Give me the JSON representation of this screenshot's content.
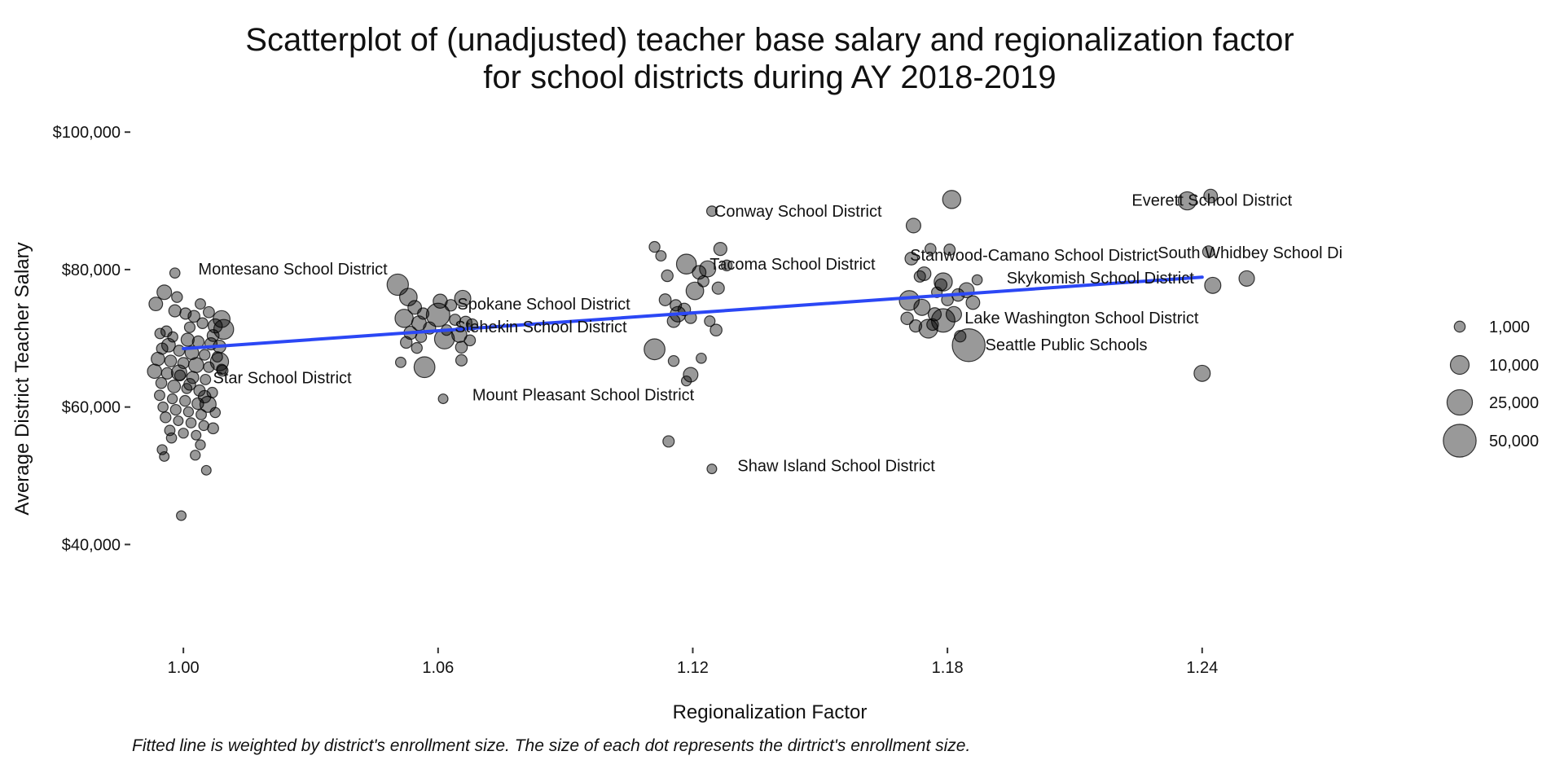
{
  "chart_data": {
    "type": "scatter",
    "title_line1": "Scatterplot of (unadjusted) teacher base salary and regionalization factor",
    "title_line2": "for school districts during AY 2018-2019",
    "xlabel": "Regionalization Factor",
    "ylabel": "Average District Teacher Salary",
    "caption": "Fitted line is weighted by district's enrollment size. The size of each dot represents the dirtrict's enrollment size.",
    "xlim": [
      0.9875,
      1.2955
    ],
    "ylim": [
      25000,
      105000
    ],
    "x_ticks": [
      1.0,
      1.06,
      1.12,
      1.18,
      1.24
    ],
    "x_tick_labels": [
      "1.00",
      "1.06",
      "1.12",
      "1.18",
      "1.24"
    ],
    "y_ticks": [
      40000,
      60000,
      80000,
      100000
    ],
    "y_tick_labels": [
      "$40,000",
      "$60,000",
      "$80,000",
      "$100,000"
    ],
    "grid": false,
    "point_color": "#000000",
    "point_opacity": 0.4,
    "line_color": "#2b47f5",
    "fit_line": {
      "x": [
        1.0,
        1.24
      ],
      "y": [
        68500,
        78900
      ]
    },
    "legend": {
      "title": "",
      "placement": "right",
      "entries": [
        {
          "label": "1,000",
          "size": 1000
        },
        {
          "label": "10,000",
          "size": 10000
        },
        {
          "label": "25,000",
          "size": 25000
        },
        {
          "label": "50,000",
          "size": 50000
        }
      ]
    },
    "labels": [
      {
        "text": "Everett School District",
        "x": 1.2423,
        "y": 90100
      },
      {
        "text": "South Whidbey School Di",
        "x": 1.2513,
        "y": 82500
      },
      {
        "text": "Conway School District",
        "x": 1.1448,
        "y": 88500
      },
      {
        "text": "Stanwood-Camano School District",
        "x": 1.2004,
        "y": 82100
      },
      {
        "text": "Tacoma School District",
        "x": 1.1435,
        "y": 80800
      },
      {
        "text": "Skykomish School District",
        "x": 1.216,
        "y": 78800
      },
      {
        "text": "Montesano School District",
        "x": 1.0258,
        "y": 80100
      },
      {
        "text": "Spokane School District",
        "x": 1.0849,
        "y": 75000
      },
      {
        "text": "Stehekin School District",
        "x": 1.0842,
        "y": 71700
      },
      {
        "text": "Lake Washington School District",
        "x": 1.2116,
        "y": 73000
      },
      {
        "text": "Seattle Public Schools",
        "x": 1.208,
        "y": 69100
      },
      {
        "text": "Star School District",
        "x": 1.0233,
        "y": 64300
      },
      {
        "text": "Mount Pleasant School District",
        "x": 1.0942,
        "y": 61800
      },
      {
        "text": "Shaw Island School District",
        "x": 1.1538,
        "y": 51500
      }
    ],
    "points": [
      {
        "x": 0.9955,
        "y": 76700,
        "size": 4000
      },
      {
        "x": 0.9935,
        "y": 75000,
        "size": 3000
      },
      {
        "x": 0.998,
        "y": 74000,
        "size": 1800
      },
      {
        "x": 1.0005,
        "y": 73600,
        "size": 1200
      },
      {
        "x": 1.0025,
        "y": 73200,
        "size": 1500
      },
      {
        "x": 1.006,
        "y": 73800,
        "size": 1100
      },
      {
        "x": 1.009,
        "y": 72800,
        "size": 7000
      },
      {
        "x": 1.0095,
        "y": 71300,
        "size": 12000
      },
      {
        "x": 1.0075,
        "y": 71800,
        "size": 3500
      },
      {
        "x": 1.0045,
        "y": 72200,
        "size": 900
      },
      {
        "x": 1.0015,
        "y": 71600,
        "size": 800
      },
      {
        "x": 0.996,
        "y": 71000,
        "size": 1000
      },
      {
        "x": 0.9945,
        "y": 70700,
        "size": 700
      },
      {
        "x": 0.9975,
        "y": 70200,
        "size": 600
      },
      {
        "x": 1.001,
        "y": 69800,
        "size": 2500
      },
      {
        "x": 1.0035,
        "y": 69500,
        "size": 1400
      },
      {
        "x": 1.0065,
        "y": 69200,
        "size": 1800
      },
      {
        "x": 1.0085,
        "y": 68800,
        "size": 2200
      },
      {
        "x": 0.995,
        "y": 68500,
        "size": 1200
      },
      {
        "x": 0.999,
        "y": 68200,
        "size": 1000
      },
      {
        "x": 1.002,
        "y": 67900,
        "size": 3000
      },
      {
        "x": 1.005,
        "y": 67600,
        "size": 900
      },
      {
        "x": 1.008,
        "y": 67300,
        "size": 700
      },
      {
        "x": 0.994,
        "y": 67000,
        "size": 2800
      },
      {
        "x": 0.997,
        "y": 66700,
        "size": 1500
      },
      {
        "x": 1.0,
        "y": 66400,
        "size": 1100
      },
      {
        "x": 1.003,
        "y": 66100,
        "size": 4500
      },
      {
        "x": 1.006,
        "y": 65800,
        "size": 800
      },
      {
        "x": 1.009,
        "y": 65500,
        "size": 600
      },
      {
        "x": 0.9932,
        "y": 65200,
        "size": 3600
      },
      {
        "x": 0.9962,
        "y": 64900,
        "size": 1300
      },
      {
        "x": 0.9992,
        "y": 64600,
        "size": 900
      },
      {
        "x": 1.0022,
        "y": 64300,
        "size": 1700
      },
      {
        "x": 1.0052,
        "y": 64000,
        "size": 700
      },
      {
        "x": 0.9948,
        "y": 63500,
        "size": 1000
      },
      {
        "x": 0.9978,
        "y": 63000,
        "size": 2200
      },
      {
        "x": 1.0008,
        "y": 62700,
        "size": 600
      },
      {
        "x": 1.0038,
        "y": 62400,
        "size": 1200
      },
      {
        "x": 1.0068,
        "y": 62100,
        "size": 800
      },
      {
        "x": 0.9944,
        "y": 61700,
        "size": 700
      },
      {
        "x": 0.9974,
        "y": 61200,
        "size": 500
      },
      {
        "x": 1.0004,
        "y": 60900,
        "size": 900
      },
      {
        "x": 1.0034,
        "y": 60500,
        "size": 1400
      },
      {
        "x": 1.0058,
        "y": 60400,
        "size": 6000
      },
      {
        "x": 0.9952,
        "y": 60000,
        "size": 600
      },
      {
        "x": 0.9982,
        "y": 59600,
        "size": 800
      },
      {
        "x": 1.0012,
        "y": 59300,
        "size": 500
      },
      {
        "x": 1.0042,
        "y": 58900,
        "size": 700
      },
      {
        "x": 1.0075,
        "y": 59200,
        "size": 600
      },
      {
        "x": 0.9958,
        "y": 58500,
        "size": 900
      },
      {
        "x": 0.9988,
        "y": 58000,
        "size": 400
      },
      {
        "x": 1.0018,
        "y": 57700,
        "size": 600
      },
      {
        "x": 1.0048,
        "y": 57300,
        "size": 500
      },
      {
        "x": 1.007,
        "y": 56900,
        "size": 1000
      },
      {
        "x": 0.9968,
        "y": 56600,
        "size": 700
      },
      {
        "x": 1.0,
        "y": 56200,
        "size": 500
      },
      {
        "x": 1.003,
        "y": 55900,
        "size": 400
      },
      {
        "x": 0.9972,
        "y": 55500,
        "size": 600
      },
      {
        "x": 1.004,
        "y": 54500,
        "size": 500
      },
      {
        "x": 0.995,
        "y": 53800,
        "size": 500
      },
      {
        "x": 1.0028,
        "y": 53000,
        "size": 500
      },
      {
        "x": 0.9955,
        "y": 52800,
        "size": 400
      },
      {
        "x": 1.0054,
        "y": 50800,
        "size": 400
      },
      {
        "x": 0.9995,
        "y": 44200,
        "size": 400
      },
      {
        "x": 0.998,
        "y": 79500,
        "size": 600
      },
      {
        "x": 0.9985,
        "y": 76000,
        "size": 900
      },
      {
        "x": 1.004,
        "y": 75000,
        "size": 700
      },
      {
        "x": 1.007,
        "y": 70400,
        "size": 1600
      },
      {
        "x": 1.0085,
        "y": 66600,
        "size": 9000
      },
      {
        "x": 1.0092,
        "y": 65300,
        "size": 1100
      },
      {
        "x": 0.999,
        "y": 65000,
        "size": 5000
      },
      {
        "x": 1.0015,
        "y": 63300,
        "size": 1500
      },
      {
        "x": 1.005,
        "y": 61500,
        "size": 2000
      },
      {
        "x": 0.9965,
        "y": 69000,
        "size": 3000
      },
      {
        "x": 1.0505,
        "y": 77800,
        "size": 15000
      },
      {
        "x": 1.053,
        "y": 76000,
        "size": 8000
      },
      {
        "x": 1.0545,
        "y": 74500,
        "size": 3000
      },
      {
        "x": 1.0565,
        "y": 73600,
        "size": 1200
      },
      {
        "x": 1.052,
        "y": 72900,
        "size": 9000
      },
      {
        "x": 1.0555,
        "y": 72200,
        "size": 4000
      },
      {
        "x": 1.058,
        "y": 71500,
        "size": 1800
      },
      {
        "x": 1.0535,
        "y": 70800,
        "size": 2500
      },
      {
        "x": 1.056,
        "y": 70200,
        "size": 1000
      },
      {
        "x": 1.0525,
        "y": 69400,
        "size": 1400
      },
      {
        "x": 1.055,
        "y": 68600,
        "size": 900
      },
      {
        "x": 1.0568,
        "y": 65800,
        "size": 14000
      },
      {
        "x": 1.0512,
        "y": 66500,
        "size": 700
      },
      {
        "x": 1.0605,
        "y": 75400,
        "size": 3500
      },
      {
        "x": 1.063,
        "y": 74800,
        "size": 1400
      },
      {
        "x": 1.0658,
        "y": 75800,
        "size": 6000
      },
      {
        "x": 1.06,
        "y": 73400,
        "size": 20000
      },
      {
        "x": 1.064,
        "y": 72700,
        "size": 1100
      },
      {
        "x": 1.0665,
        "y": 72300,
        "size": 2000
      },
      {
        "x": 1.068,
        "y": 72000,
        "size": 1300
      },
      {
        "x": 1.062,
        "y": 71200,
        "size": 800
      },
      {
        "x": 1.065,
        "y": 70500,
        "size": 4500
      },
      {
        "x": 1.0675,
        "y": 69700,
        "size": 1000
      },
      {
        "x": 1.0615,
        "y": 69900,
        "size": 12000
      },
      {
        "x": 1.0655,
        "y": 68700,
        "size": 1500
      },
      {
        "x": 1.0655,
        "y": 66800,
        "size": 1200
      },
      {
        "x": 1.0612,
        "y": 61200,
        "size": 400
      },
      {
        "x": 1.111,
        "y": 83300,
        "size": 900
      },
      {
        "x": 1.1125,
        "y": 82000,
        "size": 700
      },
      {
        "x": 1.114,
        "y": 79100,
        "size": 1400
      },
      {
        "x": 1.1185,
        "y": 80800,
        "size": 12000
      },
      {
        "x": 1.1215,
        "y": 79600,
        "size": 3000
      },
      {
        "x": 1.1235,
        "y": 80100,
        "size": 6000
      },
      {
        "x": 1.1265,
        "y": 83000,
        "size": 2500
      },
      {
        "x": 1.128,
        "y": 80600,
        "size": 900
      },
      {
        "x": 1.1225,
        "y": 78300,
        "size": 1100
      },
      {
        "x": 1.126,
        "y": 77300,
        "size": 1800
      },
      {
        "x": 1.1205,
        "y": 76900,
        "size": 8000
      },
      {
        "x": 1.1135,
        "y": 75600,
        "size": 1600
      },
      {
        "x": 1.116,
        "y": 74800,
        "size": 1200
      },
      {
        "x": 1.118,
        "y": 74200,
        "size": 2000
      },
      {
        "x": 1.1165,
        "y": 73500,
        "size": 5000
      },
      {
        "x": 1.1195,
        "y": 73000,
        "size": 1400
      },
      {
        "x": 1.124,
        "y": 72500,
        "size": 800
      },
      {
        "x": 1.1255,
        "y": 71200,
        "size": 1500
      },
      {
        "x": 1.1155,
        "y": 72500,
        "size": 2200
      },
      {
        "x": 1.111,
        "y": 68400,
        "size": 14000
      },
      {
        "x": 1.1155,
        "y": 66700,
        "size": 900
      },
      {
        "x": 1.122,
        "y": 67100,
        "size": 600
      },
      {
        "x": 1.1195,
        "y": 64700,
        "size": 4000
      },
      {
        "x": 1.1185,
        "y": 63800,
        "size": 500
      },
      {
        "x": 1.1143,
        "y": 55000,
        "size": 1200
      },
      {
        "x": 1.1245,
        "y": 88500,
        "size": 700
      },
      {
        "x": 1.1245,
        "y": 51000,
        "size": 400
      },
      {
        "x": 1.172,
        "y": 86400,
        "size": 4000
      },
      {
        "x": 1.176,
        "y": 83000,
        "size": 1000
      },
      {
        "x": 1.1715,
        "y": 81600,
        "size": 2200
      },
      {
        "x": 1.1745,
        "y": 79400,
        "size": 3000
      },
      {
        "x": 1.1785,
        "y": 77800,
        "size": 1500
      },
      {
        "x": 1.1735,
        "y": 79000,
        "size": 1200
      },
      {
        "x": 1.171,
        "y": 75500,
        "size": 12000
      },
      {
        "x": 1.174,
        "y": 74500,
        "size": 6000
      },
      {
        "x": 1.177,
        "y": 73500,
        "size": 2500
      },
      {
        "x": 1.18,
        "y": 75600,
        "size": 1500
      },
      {
        "x": 1.1825,
        "y": 76300,
        "size": 2000
      },
      {
        "x": 1.1845,
        "y": 77000,
        "size": 4500
      },
      {
        "x": 1.186,
        "y": 75200,
        "size": 3000
      },
      {
        "x": 1.1705,
        "y": 72900,
        "size": 2000
      },
      {
        "x": 1.1725,
        "y": 71800,
        "size": 1800
      },
      {
        "x": 1.1755,
        "y": 71400,
        "size": 10000
      },
      {
        "x": 1.179,
        "y": 72600,
        "size": 20000
      },
      {
        "x": 1.1815,
        "y": 73500,
        "size": 5000
      },
      {
        "x": 1.183,
        "y": 70300,
        "size": 1300
      },
      {
        "x": 1.1805,
        "y": 82900,
        "size": 1100
      },
      {
        "x": 1.181,
        "y": 90200,
        "size": 9000
      },
      {
        "x": 1.185,
        "y": 69000,
        "size": 50000
      },
      {
        "x": 1.179,
        "y": 78200,
        "size": 9000
      },
      {
        "x": 1.1765,
        "y": 72000,
        "size": 1400
      },
      {
        "x": 1.187,
        "y": 78500,
        "size": 600
      },
      {
        "x": 1.1775,
        "y": 76700,
        "size": 800
      },
      {
        "x": 1.2365,
        "y": 90000,
        "size": 9000
      },
      {
        "x": 1.242,
        "y": 90700,
        "size": 3000
      },
      {
        "x": 1.2415,
        "y": 82600,
        "size": 1500
      },
      {
        "x": 1.2425,
        "y": 77700,
        "size": 6000
      },
      {
        "x": 1.2505,
        "y": 78700,
        "size": 5000
      },
      {
        "x": 1.24,
        "y": 64900,
        "size": 6000
      }
    ]
  }
}
